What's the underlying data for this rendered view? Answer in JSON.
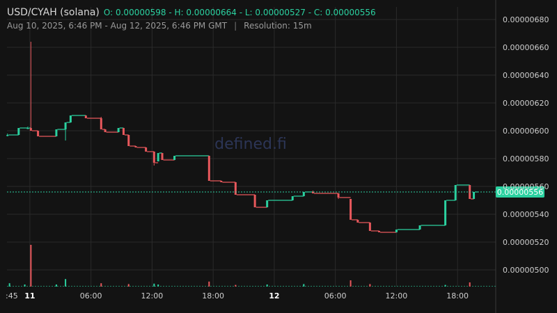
{
  "header": {
    "pair": "USD/CYAH (solana)",
    "ohlc_text": "O: 0.00000598 - H: 0.00000664 - L: 0.00000527 - C: 0.00000556",
    "range": "Aug 10, 2025, 6:46 PM - Aug 12, 2025, 6:46 PM GMT",
    "separator": "|",
    "resolution": "Resolution: 15m"
  },
  "watermark": "defined.fi",
  "colors": {
    "background": "#131313",
    "grid": "#2a2a2a",
    "up": "#2bd1a0",
    "down": "#e8585c",
    "axis_text": "#cfcfcf",
    "last_price_bg": "#2bd1a0"
  },
  "chart_data": {
    "type": "candlestick",
    "title": "USD/CYAH (solana)",
    "resolution": "15m",
    "y_axis": {
      "min": 4.88e-06,
      "max": 6.89e-06,
      "ticks": [
        "0.00000500",
        "0.00000520",
        "0.00000540",
        "0.00000560",
        "0.00000580",
        "0.00000600",
        "0.00000620",
        "0.00000640",
        "0.00000660",
        "0.00000680"
      ],
      "tick_values": [
        5e-06,
        5.2e-06,
        5.4e-06,
        5.6e-06,
        5.8e-06,
        6e-06,
        6.2e-06,
        6.4e-06,
        6.6e-06,
        6.8e-06
      ]
    },
    "x_axis": {
      "start_hour": -2.25,
      "end_hour": 45.75,
      "ticks": [
        {
          "label": ":45",
          "hour": -2.25,
          "bold": false
        },
        {
          "label": "11",
          "hour": 0,
          "bold": true
        },
        {
          "label": "06:00",
          "hour": 6,
          "bold": false
        },
        {
          "label": "12:00",
          "hour": 12,
          "bold": false
        },
        {
          "label": "18:00",
          "hour": 18,
          "bold": false
        },
        {
          "label": "12",
          "hour": 24,
          "bold": true
        },
        {
          "label": "06:00",
          "hour": 30,
          "bold": false
        },
        {
          "label": "12:00",
          "hour": 36,
          "bold": false
        },
        {
          "label": "18:00",
          "hour": 42,
          "bold": false
        }
      ]
    },
    "last_price": {
      "value": 5.56e-06,
      "label": "0.00000556"
    },
    "candles": [
      {
        "t": -2.2,
        "o": 5.97,
        "h": 5.98,
        "l": 5.96,
        "c": 5.97
      },
      {
        "t": -1.1,
        "o": 5.97,
        "h": 6.02,
        "l": 5.97,
        "c": 6.02
      },
      {
        "t": -0.2,
        "o": 6.02,
        "h": 6.03,
        "l": 6.02,
        "c": 6.02
      },
      {
        "t": 0.1,
        "o": 6.02,
        "h": 6.64,
        "l": 6.0,
        "c": 6.0
      },
      {
        "t": 0.8,
        "o": 6.0,
        "h": 6.0,
        "l": 5.96,
        "c": 5.96
      },
      {
        "t": 2.6,
        "o": 5.96,
        "h": 6.01,
        "l": 5.96,
        "c": 6.01
      },
      {
        "t": 3.5,
        "o": 6.01,
        "h": 6.06,
        "l": 5.93,
        "c": 6.06
      },
      {
        "t": 4.0,
        "o": 6.06,
        "h": 6.11,
        "l": 6.06,
        "c": 6.11
      },
      {
        "t": 5.5,
        "o": 6.11,
        "h": 6.11,
        "l": 6.09,
        "c": 6.09
      },
      {
        "t": 7.0,
        "o": 6.09,
        "h": 6.1,
        "l": 6.01,
        "c": 6.01
      },
      {
        "t": 7.4,
        "o": 6.01,
        "h": 6.01,
        "l": 5.99,
        "c": 5.99
      },
      {
        "t": 8.7,
        "o": 5.99,
        "h": 6.02,
        "l": 5.99,
        "c": 6.02
      },
      {
        "t": 9.2,
        "o": 6.02,
        "h": 6.02,
        "l": 5.97,
        "c": 5.97
      },
      {
        "t": 9.7,
        "o": 5.97,
        "h": 5.97,
        "l": 5.89,
        "c": 5.89
      },
      {
        "t": 10.4,
        "o": 5.89,
        "h": 5.89,
        "l": 5.88,
        "c": 5.88
      },
      {
        "t": 11.4,
        "o": 5.88,
        "h": 5.88,
        "l": 5.85,
        "c": 5.85
      },
      {
        "t": 12.2,
        "o": 5.85,
        "h": 5.85,
        "l": 5.75,
        "c": 5.77
      },
      {
        "t": 12.6,
        "o": 5.78,
        "h": 5.84,
        "l": 5.78,
        "c": 5.84
      },
      {
        "t": 13.0,
        "o": 5.84,
        "h": 5.84,
        "l": 5.79,
        "c": 5.79
      },
      {
        "t": 14.2,
        "o": 5.79,
        "h": 5.82,
        "l": 5.79,
        "c": 5.82
      },
      {
        "t": 17.6,
        "o": 5.82,
        "h": 5.82,
        "l": 5.64,
        "c": 5.64
      },
      {
        "t": 18.8,
        "o": 5.64,
        "h": 5.64,
        "l": 5.63,
        "c": 5.63
      },
      {
        "t": 20.2,
        "o": 5.63,
        "h": 5.63,
        "l": 5.54,
        "c": 5.54
      },
      {
        "t": 22.1,
        "o": 5.54,
        "h": 5.54,
        "l": 5.45,
        "c": 5.45
      },
      {
        "t": 23.3,
        "o": 5.45,
        "h": 5.5,
        "l": 5.45,
        "c": 5.5
      },
      {
        "t": 25.8,
        "o": 5.5,
        "h": 5.53,
        "l": 5.5,
        "c": 5.53
      },
      {
        "t": 26.9,
        "o": 5.53,
        "h": 5.56,
        "l": 5.53,
        "c": 5.56
      },
      {
        "t": 27.8,
        "o": 5.56,
        "h": 5.57,
        "l": 5.55,
        "c": 5.55
      },
      {
        "t": 30.3,
        "o": 5.55,
        "h": 5.55,
        "l": 5.51,
        "c": 5.52
      },
      {
        "t": 31.5,
        "o": 5.51,
        "h": 5.51,
        "l": 5.36,
        "c": 5.36
      },
      {
        "t": 32.2,
        "o": 5.36,
        "h": 5.36,
        "l": 5.34,
        "c": 5.34
      },
      {
        "t": 33.4,
        "o": 5.34,
        "h": 5.34,
        "l": 5.28,
        "c": 5.28
      },
      {
        "t": 34.3,
        "o": 5.28,
        "h": 5.28,
        "l": 5.27,
        "c": 5.27
      },
      {
        "t": 36.0,
        "o": 5.27,
        "h": 5.29,
        "l": 5.27,
        "c": 5.29
      },
      {
        "t": 38.3,
        "o": 5.29,
        "h": 5.32,
        "l": 5.29,
        "c": 5.32
      },
      {
        "t": 40.8,
        "o": 5.32,
        "h": 5.5,
        "l": 5.32,
        "c": 5.5
      },
      {
        "t": 41.8,
        "o": 5.5,
        "h": 5.61,
        "l": 5.5,
        "c": 5.61
      },
      {
        "t": 43.2,
        "o": 5.61,
        "h": 5.61,
        "l": 5.51,
        "c": 5.51
      },
      {
        "t": 43.6,
        "o": 5.51,
        "h": 5.56,
        "l": 5.51,
        "c": 5.56
      }
    ],
    "volume": [
      {
        "t": -2.0,
        "v": 0.08,
        "up": true
      },
      {
        "t": -0.5,
        "v": 0.05,
        "up": true
      },
      {
        "t": 0.1,
        "v": 1.0,
        "up": false
      },
      {
        "t": 2.6,
        "v": 0.05,
        "up": true
      },
      {
        "t": 3.5,
        "v": 0.18,
        "up": true
      },
      {
        "t": 7.0,
        "v": 0.08,
        "up": false
      },
      {
        "t": 9.7,
        "v": 0.06,
        "up": false
      },
      {
        "t": 12.2,
        "v": 0.07,
        "up": true
      },
      {
        "t": 12.6,
        "v": 0.05,
        "up": true
      },
      {
        "t": 17.6,
        "v": 0.12,
        "up": false
      },
      {
        "t": 20.2,
        "v": 0.04,
        "up": false
      },
      {
        "t": 23.3,
        "v": 0.05,
        "up": true
      },
      {
        "t": 26.9,
        "v": 0.06,
        "up": true
      },
      {
        "t": 31.5,
        "v": 0.15,
        "up": false
      },
      {
        "t": 33.4,
        "v": 0.06,
        "up": false
      },
      {
        "t": 40.8,
        "v": 0.04,
        "up": true
      },
      {
        "t": 43.2,
        "v": 0.1,
        "up": false
      }
    ],
    "volume_max_px": 60
  }
}
